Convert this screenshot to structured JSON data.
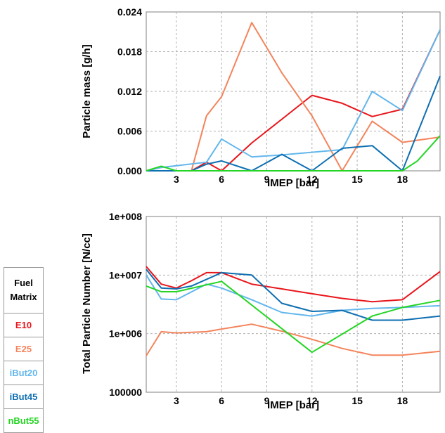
{
  "chart_data": [
    {
      "type": "line",
      "xlabel": "IMEP [bar]",
      "ylabel": "Particle mass [g/h]",
      "xlim": [
        1,
        20.5
      ],
      "ylim": [
        0,
        0.024
      ],
      "xticks": [
        3,
        6,
        9,
        12,
        15,
        18
      ],
      "xtick_labels": [
        "3",
        "6",
        "9",
        "12",
        "15",
        "18"
      ],
      "yticks": [
        0,
        0.006,
        0.012,
        0.018,
        0.024
      ],
      "ytick_labels": [
        "0.000",
        "0.006",
        "0.012",
        "0.018",
        "0.024"
      ],
      "grid": true,
      "series": [
        {
          "name": "E10",
          "x": [
            1,
            2,
            3,
            4,
            5,
            6,
            8,
            10,
            12,
            14,
            16,
            18,
            20.5
          ],
          "y": [
            0,
            0,
            0,
            0,
            0.0013,
            0,
            0.0042,
            0.0078,
            0.0114,
            0.0102,
            0.0082,
            0.0093,
            0.0213
          ]
        },
        {
          "name": "E25",
          "x": [
            1,
            4,
            5,
            6,
            8,
            10,
            12,
            14,
            16,
            18,
            20.5
          ],
          "y": [
            0,
            0,
            0.0083,
            0.0112,
            0.0224,
            0.0148,
            0.0083,
            0,
            0.0075,
            0.0043,
            0.0051
          ]
        },
        {
          "name": "iBut20",
          "x": [
            1,
            2,
            5,
            6,
            8,
            10,
            12,
            14,
            16,
            18,
            20.5
          ],
          "y": [
            0,
            0.0005,
            0.0013,
            0.0048,
            0.0021,
            0.0024,
            0.0028,
            0.0032,
            0.012,
            0.0091,
            0.0213
          ]
        },
        {
          "name": "iBut45",
          "x": [
            1,
            2,
            3,
            4,
            5,
            6,
            8,
            10,
            12,
            14,
            16,
            18,
            20.5
          ],
          "y": [
            0,
            0,
            0,
            0,
            0.001,
            0.0015,
            0,
            0.0025,
            0,
            0.0034,
            0.0038,
            0,
            0.0143
          ]
        },
        {
          "name": "nBut55",
          "x": [
            1,
            2,
            3,
            6,
            9,
            12,
            15,
            18,
            19,
            20.5
          ],
          "y": [
            0,
            0.0007,
            0,
            0,
            0,
            0,
            0,
            0,
            0.0015,
            0.0053
          ]
        }
      ]
    },
    {
      "type": "line",
      "xlabel": "IMEP [bar]",
      "ylabel": "Total Particle Number [N/cc]",
      "yscale": "log",
      "xlim": [
        1,
        20.5
      ],
      "ylim": [
        100000,
        100000000
      ],
      "xticks": [
        3,
        6,
        9,
        12,
        15,
        18
      ],
      "xtick_labels": [
        "3",
        "6",
        "9",
        "12",
        "15",
        "18"
      ],
      "yticks": [
        100000,
        1000000,
        10000000,
        100000000
      ],
      "ytick_labels": [
        "100000",
        "1e+006",
        "1e+007",
        "1e+008"
      ],
      "grid": true,
      "series": [
        {
          "name": "E10",
          "x": [
            1,
            2,
            3,
            4,
            5,
            6,
            8,
            10,
            12,
            14,
            16,
            18,
            20.5
          ],
          "y": [
            14000000,
            7000000,
            6000000,
            8000000,
            11000000,
            11000000,
            7000000,
            5800000,
            4800000,
            4000000,
            3500000,
            3800000,
            11500000
          ]
        },
        {
          "name": "E25",
          "x": [
            1,
            2,
            3,
            5,
            6,
            8,
            10,
            12,
            14,
            16,
            18,
            20.5
          ],
          "y": [
            420000,
            1080000,
            1030000,
            1080000,
            1200000,
            1450000,
            1100000,
            800000,
            560000,
            430000,
            430000,
            500000
          ]
        },
        {
          "name": "iBut20",
          "x": [
            1,
            2,
            3,
            5,
            6,
            8,
            10,
            12,
            14,
            16,
            18,
            20.5
          ],
          "y": [
            10000000,
            3900000,
            3800000,
            7000000,
            6000000,
            3800000,
            2300000,
            2000000,
            2500000,
            2700000,
            2800000,
            3000000
          ]
        },
        {
          "name": "iBut45",
          "x": [
            1,
            2,
            3,
            4,
            6,
            8,
            10,
            12,
            14,
            16,
            18,
            20.5
          ],
          "y": [
            12500000,
            6000000,
            5800000,
            6500000,
            11000000,
            10000000,
            3300000,
            2400000,
            2500000,
            1700000,
            1700000,
            2000000
          ]
        },
        {
          "name": "nBut55",
          "x": [
            1,
            2,
            3,
            6,
            12,
            16,
            18,
            20.5
          ],
          "y": [
            6500000,
            5200000,
            5200000,
            7800000,
            480000,
            2000000,
            2800000,
            3700000
          ]
        }
      ]
    }
  ],
  "legend": {
    "title_line1": "Fuel",
    "title_line2": "Matrix",
    "items": [
      {
        "label": "E10",
        "color": "#e8161c"
      },
      {
        "label": "E25",
        "color": "#f4845c"
      },
      {
        "label": "iBut20",
        "color": "#63b7ec"
      },
      {
        "label": "iBut45",
        "color": "#0e6fb2"
      },
      {
        "label": "nBut55",
        "color": "#24d524"
      }
    ]
  }
}
